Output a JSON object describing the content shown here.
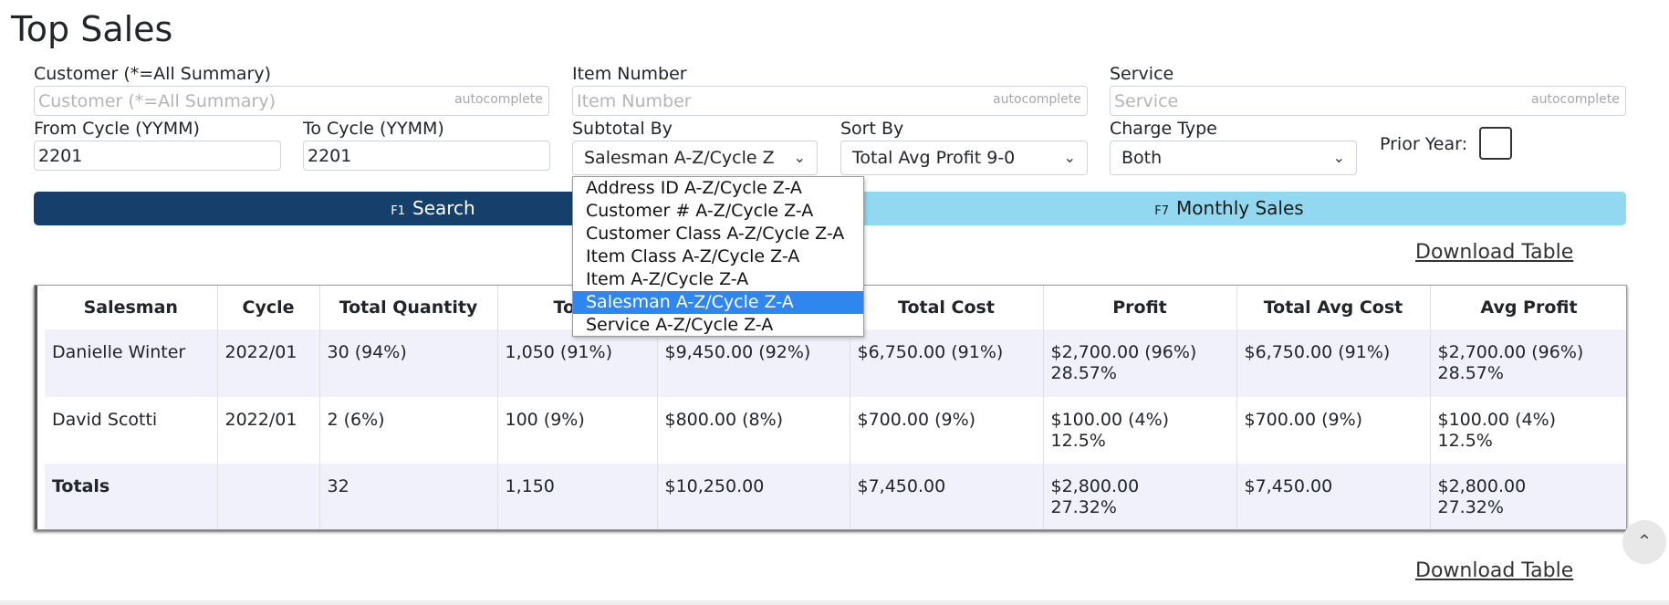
{
  "page": {
    "title": "Top Sales"
  },
  "filters": {
    "customer": {
      "label": "Customer (*=All Summary)",
      "placeholder": "Customer (*=All Summary)",
      "hint": "autocomplete"
    },
    "item_number": {
      "label": "Item Number",
      "placeholder": "Item Number",
      "hint": "autocomplete"
    },
    "service": {
      "label": "Service",
      "placeholder": "Service",
      "hint": "autocomplete"
    },
    "from_cycle": {
      "label": "From Cycle (YYMM)",
      "value": "2201"
    },
    "to_cycle": {
      "label": "To Cycle (YYMM)",
      "value": "2201"
    },
    "subtotal_by": {
      "label": "Subtotal By",
      "value": "Salesman A-Z/Cycle Z",
      "options": [
        "Address ID A-Z/Cycle Z-A",
        "Customer # A-Z/Cycle Z-A",
        "Customer Class A-Z/Cycle Z-A",
        "Item Class A-Z/Cycle Z-A",
        "Item A-Z/Cycle Z-A",
        "Salesman A-Z/Cycle Z-A",
        "Service A-Z/Cycle Z-A"
      ],
      "highlighted_option": "Salesman A-Z/Cycle Z-A"
    },
    "sort_by": {
      "label": "Sort By",
      "value": "Total Avg Profit 9-0"
    },
    "charge_type": {
      "label": "Charge Type",
      "value": "Both"
    },
    "prior_year": {
      "label": "Prior Year:",
      "checked": false
    }
  },
  "actions": {
    "search": {
      "key": "F1",
      "label": "Search"
    },
    "monthly": {
      "key": "F7",
      "label": "Monthly Sales"
    },
    "download": "Download Table"
  },
  "table": {
    "headers": [
      "Salesman",
      "Cycle",
      "Total Quantity",
      "Total",
      "",
      "Total Cost",
      "Profit",
      "Total Avg Cost",
      "Avg Profit"
    ],
    "rows": [
      {
        "salesman": "Danielle Winter",
        "cycle": "2022/01",
        "qty": "30 (94%)",
        "total": "1,050 (91%)",
        "col5": "$9,450.00 (92%)",
        "cost": "$6,750.00 (91%)",
        "profit": "$2,700.00 (96%)",
        "profit_pct": "28.57%",
        "avg_cost": "$6,750.00 (91%)",
        "avg_profit": "$2,700.00 (96%)",
        "avg_profit_pct": "28.57%"
      },
      {
        "salesman": "David Scotti",
        "cycle": "2022/01",
        "qty": "2 (6%)",
        "total": "100 (9%)",
        "col5": "$800.00 (8%)",
        "cost": "$700.00 (9%)",
        "profit": "$100.00 (4%)",
        "profit_pct": "12.5%",
        "avg_cost": "$700.00 (9%)",
        "avg_profit": "$100.00 (4%)",
        "avg_profit_pct": "12.5%"
      }
    ],
    "totals": {
      "label": "Totals",
      "cycle": "",
      "qty": "32",
      "total": "1,150",
      "col5": "$10,250.00",
      "cost": "$7,450.00",
      "profit": "$2,800.00",
      "profit_pct": "27.32%",
      "avg_cost": "$7,450.00",
      "avg_profit": "$2,800.00",
      "avg_profit_pct": "27.32%"
    }
  },
  "icons": {
    "chevron": "chevron-down-icon",
    "scroll_top": "chevron-up-icon"
  },
  "colors": {
    "primary": "#15406b",
    "secondary": "#91d8f0",
    "selected": "#2f86ee",
    "row_alt": "#f0f1fa"
  }
}
